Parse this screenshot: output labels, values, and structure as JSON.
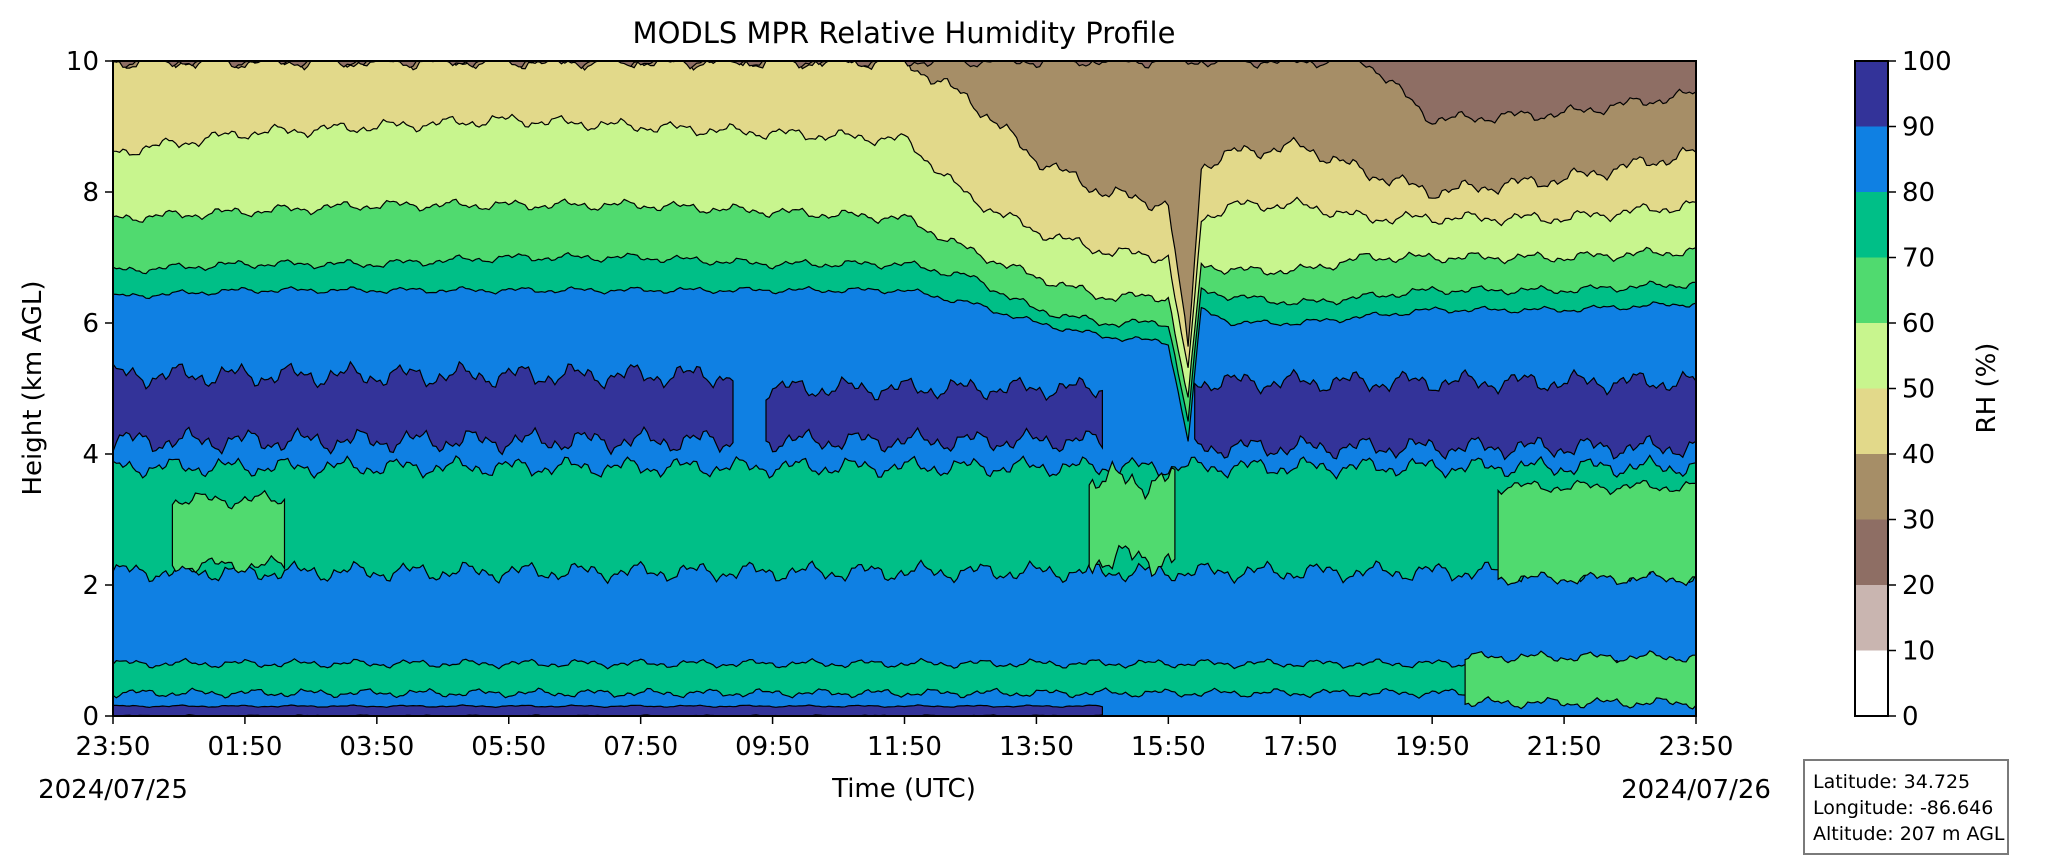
{
  "chart_data": {
    "type": "heatmap",
    "title": "MODLS MPR Relative Humidity Profile",
    "xlabel": "Time (UTC)",
    "ylabel": "Height (km AGL)",
    "x_ticks": [
      "23:50",
      "01:50",
      "03:50",
      "05:50",
      "07:50",
      "09:50",
      "11:50",
      "13:50",
      "15:50",
      "17:50",
      "19:50",
      "21:50",
      "23:50"
    ],
    "x_range_hours": [
      0,
      24
    ],
    "start_date": "2024/07/25",
    "end_date": "2024/07/26",
    "ylim": [
      0,
      10
    ],
    "y_ticks": [
      "0",
      "2",
      "4",
      "6",
      "8",
      "10"
    ],
    "colorbar": {
      "label": "RH (%)",
      "levels": [
        0,
        10,
        20,
        30,
        40,
        50,
        60,
        70,
        80,
        90,
        100
      ],
      "tick_labels": [
        "0",
        "10",
        "20",
        "30",
        "40",
        "50",
        "60",
        "70",
        "80",
        "90",
        "100"
      ],
      "colors": [
        "#ffffff",
        "#c9b5b0",
        "#8e6e64",
        "#a68e67",
        "#e2d98a",
        "#c8f58e",
        "#50da6f",
        "#00bf87",
        "#0f80e3",
        "#333399"
      ]
    },
    "rh_layer_tops_km": {
      "time_hours": [
        0,
        2,
        4,
        6,
        8,
        10,
        12,
        13,
        14,
        15,
        16,
        16.3,
        16.5,
        17,
        18,
        19,
        20,
        22,
        24
      ],
      "rh80_upper": [
        6.4,
        6.5,
        6.5,
        6.5,
        6.5,
        6.5,
        6.5,
        6.3,
        6.0,
        5.8,
        5.7,
        4.2,
        6.2,
        6.0,
        6.0,
        6.1,
        6.2,
        6.2,
        6.3
      ],
      "rh70": [
        6.8,
        6.9,
        6.9,
        7.0,
        7.0,
        6.9,
        6.9,
        6.7,
        6.2,
        6.0,
        6.0,
        4.5,
        6.5,
        6.4,
        6.3,
        6.4,
        6.5,
        6.5,
        6.6
      ],
      "rh60": [
        7.6,
        7.7,
        7.8,
        7.8,
        7.8,
        7.7,
        7.6,
        7.1,
        6.7,
        6.4,
        6.4,
        4.8,
        6.9,
        6.8,
        6.8,
        7.0,
        7.0,
        7.0,
        7.1
      ],
      "rh50": [
        8.6,
        8.9,
        9.0,
        9.1,
        9.0,
        8.9,
        8.8,
        7.9,
        7.4,
        7.1,
        7.0,
        5.2,
        7.6,
        7.8,
        7.8,
        7.6,
        7.6,
        7.6,
        7.8
      ],
      "rh40": [
        10.0,
        10.0,
        10.0,
        10.0,
        10.0,
        10.0,
        10.0,
        9.4,
        8.5,
        8.0,
        7.8,
        5.6,
        8.4,
        8.6,
        8.7,
        8.3,
        8.0,
        8.2,
        8.6
      ],
      "rh30": [
        10.0,
        10.0,
        10.0,
        10.0,
        10.0,
        10.0,
        10.0,
        10.0,
        10.0,
        10.0,
        10.0,
        10.0,
        10.0,
        10.0,
        10.0,
        10.0,
        9.1,
        9.2,
        9.5
      ]
    },
    "moist_bands_km": {
      "rh90_layer": [
        4.2,
        5.2
      ],
      "rh70_mid_layer": [
        2.2,
        3.8
      ],
      "rh80_low_layer": [
        0.4,
        2.2
      ],
      "rh90_surface_layer": [
        0.0,
        0.15
      ]
    }
  },
  "info_box": {
    "latitude": "Latitude: 34.725",
    "longitude": "Longitude: -86.646",
    "altitude": "Altitude: 207 m AGL"
  }
}
